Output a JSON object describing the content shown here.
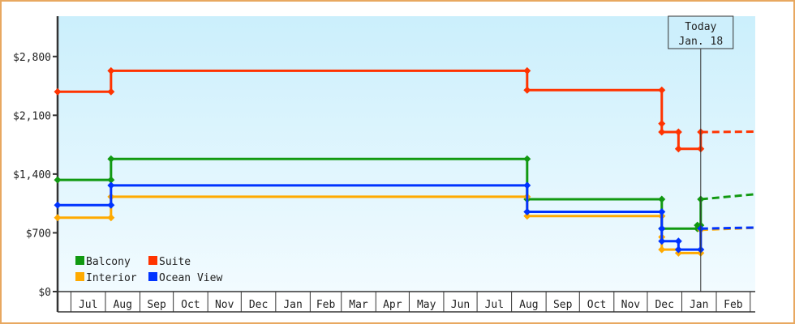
{
  "chart_data": {
    "type": "line",
    "step": true,
    "ylabel": "",
    "xlabel": "",
    "ylim": [
      0,
      3280
    ],
    "xlim": [
      "2022-06-19",
      "2024-03-07"
    ],
    "y_ticks": [
      {
        "value": 0,
        "label": "$0"
      },
      {
        "value": 700,
        "label": "$700"
      },
      {
        "value": 1400,
        "label": "$1,400"
      },
      {
        "value": 2100,
        "label": "$2,100"
      },
      {
        "value": 2800,
        "label": "$2,800"
      }
    ],
    "x_ticks": [
      {
        "date": "2022-07-01",
        "label": "Jul"
      },
      {
        "date": "2022-08-01",
        "label": "Aug"
      },
      {
        "date": "2022-09-01",
        "label": "Sep"
      },
      {
        "date": "2022-10-01",
        "label": "Oct"
      },
      {
        "date": "2022-11-01",
        "label": "Nov"
      },
      {
        "date": "2022-12-01",
        "label": "Dec"
      },
      {
        "date": "2023-01-01",
        "label": "Jan"
      },
      {
        "date": "2023-02-01",
        "label": "Feb"
      },
      {
        "date": "2023-03-01",
        "label": "Mar"
      },
      {
        "date": "2023-04-01",
        "label": "Apr"
      },
      {
        "date": "2023-05-01",
        "label": "May"
      },
      {
        "date": "2023-06-01",
        "label": "Jun"
      },
      {
        "date": "2023-07-01",
        "label": "Jul"
      },
      {
        "date": "2023-08-01",
        "label": "Aug"
      },
      {
        "date": "2023-09-01",
        "label": "Sep"
      },
      {
        "date": "2023-10-01",
        "label": "Oct"
      },
      {
        "date": "2023-11-01",
        "label": "Nov"
      },
      {
        "date": "2023-12-01",
        "label": "Dec"
      },
      {
        "date": "2024-01-01",
        "label": "Jan"
      },
      {
        "date": "2024-02-01",
        "label": "Feb"
      }
    ],
    "today": {
      "date": "2024-01-18",
      "label_line1": "Today",
      "label_line2": "Jan. 18"
    },
    "legend_position": "bottom-left",
    "grid": false,
    "background_gradient": [
      "#cbeffc",
      "#f2fbff"
    ],
    "series": [
      {
        "name": "Balcony",
        "color": "#119911",
        "points": [
          [
            "2022-06-19",
            1330
          ],
          [
            "2022-08-06",
            1330
          ],
          [
            "2022-08-06",
            1580
          ],
          [
            "2023-08-15",
            1580
          ],
          [
            "2023-08-15",
            1100
          ],
          [
            "2023-12-14",
            1100
          ],
          [
            "2023-12-14",
            900
          ],
          [
            "2023-12-14",
            750
          ],
          [
            "2024-01-15",
            750
          ],
          [
            "2024-01-15",
            790
          ],
          [
            "2024-01-18",
            790
          ],
          [
            "2024-01-18",
            1100
          ]
        ],
        "projection": [
          [
            "2024-01-18",
            1100
          ],
          [
            "2024-03-07",
            1160
          ]
        ]
      },
      {
        "name": "Suite",
        "color": "#ff3300",
        "points": [
          [
            "2022-06-19",
            2380
          ],
          [
            "2022-08-06",
            2380
          ],
          [
            "2022-08-06",
            2630
          ],
          [
            "2023-08-15",
            2630
          ],
          [
            "2023-08-15",
            2400
          ],
          [
            "2023-12-14",
            2400
          ],
          [
            "2023-12-14",
            2000
          ],
          [
            "2023-12-14",
            1900
          ],
          [
            "2023-12-29",
            1900
          ],
          [
            "2023-12-29",
            1700
          ],
          [
            "2024-01-18",
            1700
          ],
          [
            "2024-01-18",
            1900
          ]
        ],
        "projection": [
          [
            "2024-01-18",
            1900
          ],
          [
            "2024-03-07",
            1905
          ]
        ]
      },
      {
        "name": "Interior",
        "color": "#ffaa00",
        "points": [
          [
            "2022-06-19",
            880
          ],
          [
            "2022-08-06",
            880
          ],
          [
            "2022-08-06",
            1130
          ],
          [
            "2023-08-15",
            1130
          ],
          [
            "2023-08-15",
            900
          ],
          [
            "2023-12-14",
            900
          ],
          [
            "2023-12-14",
            650
          ],
          [
            "2023-12-14",
            500
          ],
          [
            "2023-12-29",
            500
          ],
          [
            "2023-12-29",
            460
          ],
          [
            "2024-01-18",
            460
          ],
          [
            "2024-01-18",
            735
          ]
        ],
        "projection": [
          [
            "2024-01-18",
            735
          ],
          [
            "2024-03-07",
            760
          ]
        ]
      },
      {
        "name": "Ocean View",
        "color": "#0033ff",
        "points": [
          [
            "2022-06-19",
            1030
          ],
          [
            "2022-08-06",
            1030
          ],
          [
            "2022-08-06",
            1265
          ],
          [
            "2023-08-15",
            1265
          ],
          [
            "2023-08-15",
            950
          ],
          [
            "2023-12-14",
            950
          ],
          [
            "2023-12-14",
            750
          ],
          [
            "2023-12-14",
            600
          ],
          [
            "2023-12-29",
            600
          ],
          [
            "2023-12-29",
            500
          ],
          [
            "2024-01-18",
            500
          ],
          [
            "2024-01-18",
            750
          ]
        ],
        "projection": [
          [
            "2024-01-18",
            750
          ],
          [
            "2024-03-07",
            763
          ]
        ]
      }
    ]
  }
}
